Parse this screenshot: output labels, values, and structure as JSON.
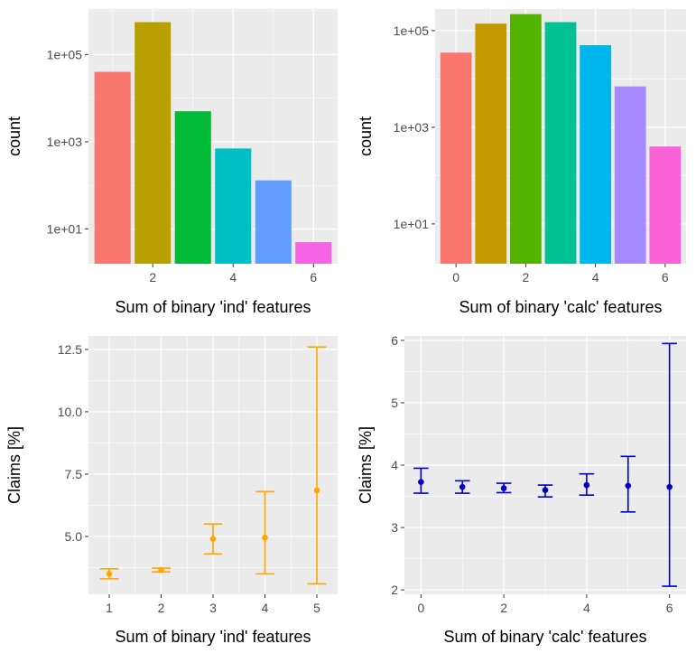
{
  "chart_data": [
    {
      "type": "bar",
      "scale_y": "log10",
      "xlabel": "Sum of binary 'ind' features",
      "ylabel": "count",
      "x": [
        1,
        2,
        3,
        4,
        5,
        6
      ],
      "values": [
        40000,
        550000,
        5000,
        700,
        130,
        5
      ],
      "colors": [
        "#F8766D",
        "#B79F00",
        "#00BA38",
        "#00BFC4",
        "#619CFF",
        "#F564E3"
      ],
      "xticks": [
        2,
        4,
        6
      ],
      "xtick_labels": [
        "2",
        "4",
        "6"
      ],
      "ytick_labels": [
        "1e+01",
        "1e+03",
        "1e+05"
      ],
      "yticks": [
        10,
        1000,
        100000
      ],
      "xlim": [
        0.4,
        6.6
      ],
      "ylim": [
        1.6,
        1100000
      ],
      "grid": true,
      "legend": "none"
    },
    {
      "type": "bar",
      "scale_y": "log10",
      "xlabel": "Sum of binary 'calc' features",
      "ylabel": "count",
      "x": [
        0,
        1,
        2,
        3,
        4,
        5,
        6
      ],
      "values": [
        35000,
        140000,
        220000,
        150000,
        50000,
        7000,
        400
      ],
      "colors": [
        "#F8766D",
        "#C49A00",
        "#53B400",
        "#00C094",
        "#00B6EB",
        "#A58AFF",
        "#FB61D7"
      ],
      "xticks": [
        0,
        2,
        4,
        6
      ],
      "xtick_labels": [
        "0",
        "2",
        "4",
        "6"
      ],
      "ytick_labels": [
        "1e+01",
        "1e+03",
        "1e+05"
      ],
      "yticks": [
        10,
        1000,
        100000
      ],
      "xlim": [
        -0.6,
        6.6
      ],
      "ylim": [
        1.5,
        280000
      ],
      "grid": true,
      "legend": "none"
    },
    {
      "type": "errorbar",
      "xlabel": "Sum of binary 'ind' features",
      "ylabel": "Claims [%]",
      "color": "#FFA500",
      "x": [
        1,
        2,
        3,
        4,
        5
      ],
      "y": [
        3.5,
        3.65,
        4.9,
        4.95,
        6.85
      ],
      "ymin": [
        3.3,
        3.58,
        4.3,
        3.5,
        3.1
      ],
      "ymax": [
        3.7,
        3.73,
        5.5,
        6.8,
        12.6
      ],
      "xticks": [
        1,
        2,
        3,
        4,
        5
      ],
      "xtick_labels": [
        "1",
        "2",
        "3",
        "4",
        "5"
      ],
      "yticks": [
        5.0,
        7.5,
        10.0,
        12.5
      ],
      "ytick_labels": [
        "5.0",
        "7.5",
        "10.0",
        "12.5"
      ],
      "xlim": [
        0.6,
        5.4
      ],
      "ylim": [
        2.68,
        13.04
      ],
      "grid": true,
      "legend": "none"
    },
    {
      "type": "errorbar",
      "xlabel": "Sum of binary 'calc' features",
      "ylabel": "Claims [%]",
      "color": "#0000CD",
      "x": [
        0,
        1,
        2,
        3,
        4,
        5,
        6
      ],
      "y": [
        3.73,
        3.65,
        3.63,
        3.6,
        3.68,
        3.67,
        3.65
      ],
      "ymin": [
        3.55,
        3.55,
        3.56,
        3.49,
        3.52,
        3.25,
        2.06
      ],
      "ymax": [
        3.95,
        3.75,
        3.71,
        3.68,
        3.86,
        4.14,
        5.95
      ],
      "xticks": [
        0,
        2,
        4,
        6
      ],
      "xtick_labels": [
        "0",
        "2",
        "4",
        "6"
      ],
      "yticks": [
        2,
        3,
        4,
        5,
        6
      ],
      "ytick_labels": [
        "2",
        "3",
        "4",
        "5",
        "6"
      ],
      "xlim": [
        -0.4,
        6.4
      ],
      "ylim": [
        1.93,
        6.07
      ],
      "grid": true,
      "legend": "none"
    }
  ]
}
